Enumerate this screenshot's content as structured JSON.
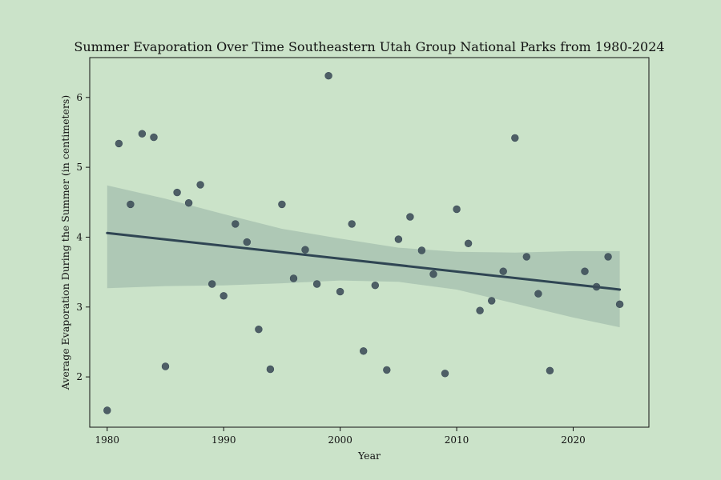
{
  "chart_data": {
    "type": "scatter",
    "title": "Summer Evaporation Over Time Southeastern Utah Group National Parks from 1980-2024",
    "xlabel": "Year",
    "ylabel": "Average Evaporation During the Summer (in centimeters)",
    "xlim": [
      1978.5,
      2026.5
    ],
    "ylim": [
      1.28,
      6.57
    ],
    "xticks": [
      1980,
      1990,
      2000,
      2010,
      2020
    ],
    "yticks": [
      2,
      3,
      4,
      5,
      6
    ],
    "grid": false,
    "points": [
      {
        "x": 1980,
        "y": 1.52
      },
      {
        "x": 1981,
        "y": 5.34
      },
      {
        "x": 1982,
        "y": 4.47
      },
      {
        "x": 1983,
        "y": 5.48
      },
      {
        "x": 1984,
        "y": 5.43
      },
      {
        "x": 1985,
        "y": 2.15
      },
      {
        "x": 1986,
        "y": 4.64
      },
      {
        "x": 1987,
        "y": 4.49
      },
      {
        "x": 1988,
        "y": 4.75
      },
      {
        "x": 1989,
        "y": 3.33
      },
      {
        "x": 1990,
        "y": 3.16
      },
      {
        "x": 1991,
        "y": 4.19
      },
      {
        "x": 1992,
        "y": 3.93
      },
      {
        "x": 1993,
        "y": 2.68
      },
      {
        "x": 1994,
        "y": 2.11
      },
      {
        "x": 1995,
        "y": 4.47
      },
      {
        "x": 1996,
        "y": 3.41
      },
      {
        "x": 1997,
        "y": 3.82
      },
      {
        "x": 1998,
        "y": 3.33
      },
      {
        "x": 1999,
        "y": 6.31
      },
      {
        "x": 2000,
        "y": 3.22
      },
      {
        "x": 2001,
        "y": 4.19
      },
      {
        "x": 2002,
        "y": 2.37
      },
      {
        "x": 2003,
        "y": 3.31
      },
      {
        "x": 2004,
        "y": 2.1
      },
      {
        "x": 2005,
        "y": 3.97
      },
      {
        "x": 2006,
        "y": 4.29
      },
      {
        "x": 2007,
        "y": 3.81
      },
      {
        "x": 2008,
        "y": 3.47
      },
      {
        "x": 2009,
        "y": 2.05
      },
      {
        "x": 2010,
        "y": 4.4
      },
      {
        "x": 2011,
        "y": 3.91
      },
      {
        "x": 2012,
        "y": 2.95
      },
      {
        "x": 2013,
        "y": 3.09
      },
      {
        "x": 2014,
        "y": 3.51
      },
      {
        "x": 2015,
        "y": 5.42
      },
      {
        "x": 2016,
        "y": 3.72
      },
      {
        "x": 2017,
        "y": 3.19
      },
      {
        "x": 2018,
        "y": 2.09
      },
      {
        "x": 2021,
        "y": 3.51
      },
      {
        "x": 2022,
        "y": 3.29
      },
      {
        "x": 2023,
        "y": 3.72
      },
      {
        "x": 2024,
        "y": 3.04
      }
    ],
    "regression": {
      "x": [
        1980,
        2024
      ],
      "y": [
        4.06,
        3.25
      ]
    },
    "confidence_band": {
      "x": [
        1980,
        1985,
        1990,
        1995,
        2000,
        2005,
        2010,
        2015,
        2020,
        2024
      ],
      "lower": [
        3.27,
        3.3,
        3.31,
        3.34,
        3.38,
        3.36,
        3.25,
        3.05,
        2.85,
        2.71
      ],
      "upper": [
        4.74,
        4.55,
        4.33,
        4.12,
        3.98,
        3.85,
        3.79,
        3.78,
        3.8,
        3.8
      ]
    },
    "colors": {
      "background": "#cbe3c9",
      "points": "#3c4c58",
      "regression_line": "#2f4553",
      "confidence_band": "#a9c3b1",
      "axis": "#111111"
    }
  }
}
